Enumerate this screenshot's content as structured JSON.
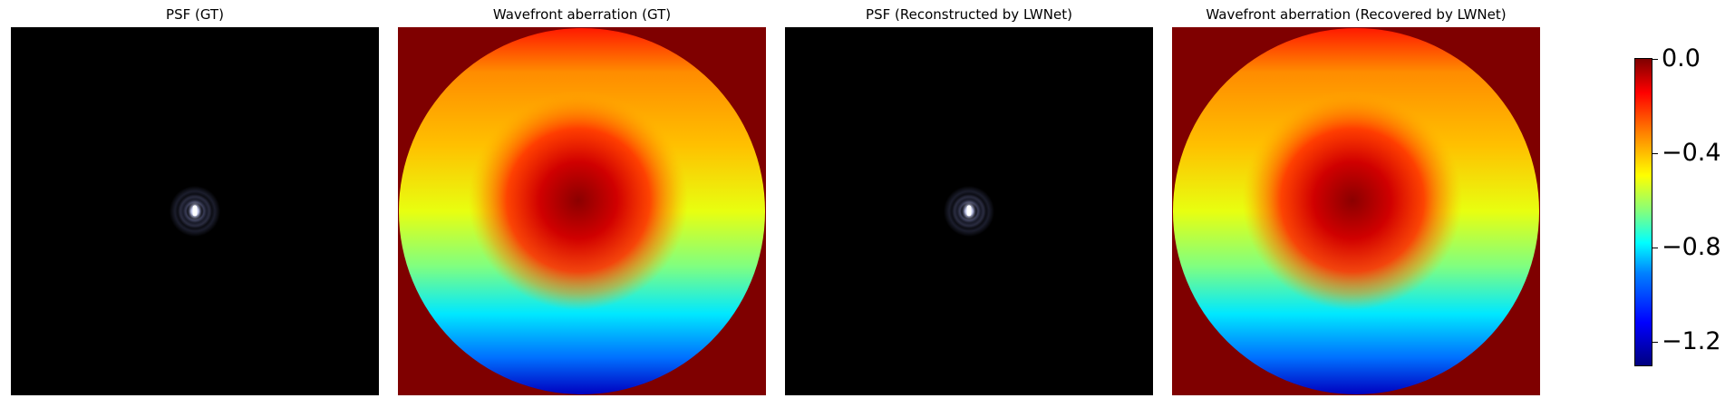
{
  "panels": [
    {
      "title": "PSF (GT)",
      "kind": "psf"
    },
    {
      "title": "Wavefront aberration (GT)",
      "kind": "wavefront"
    },
    {
      "title": "PSF (Reconstructed by LWNet)",
      "kind": "psf"
    },
    {
      "title": "Wavefront aberration (Recovered by LWNet)",
      "kind": "wavefront"
    }
  ],
  "colorbar": {
    "colormap": "jet",
    "range": [
      -1.3,
      0.0
    ],
    "ticks": [
      {
        "value": 0.0,
        "label": "0.0"
      },
      {
        "value": -0.4,
        "label": "−0.4"
      },
      {
        "value": -0.8,
        "label": "−0.8"
      },
      {
        "value": -1.2,
        "label": "−1.2"
      }
    ]
  },
  "colors": {
    "background": "#7f0000",
    "psf_background": "#000000"
  }
}
